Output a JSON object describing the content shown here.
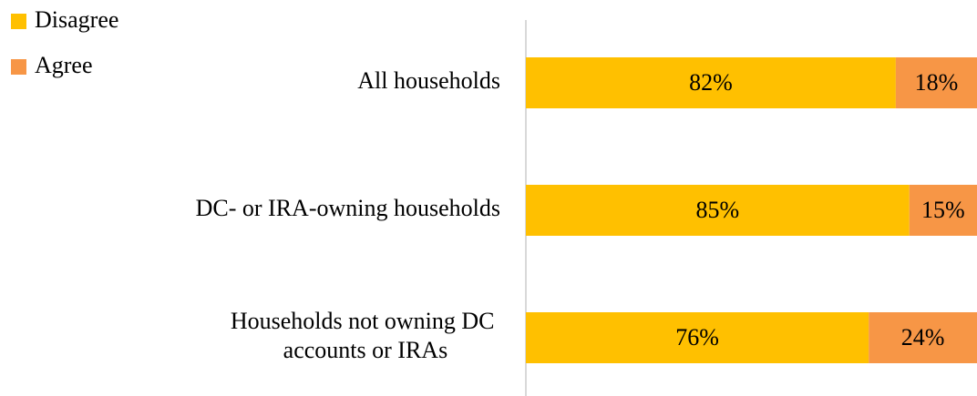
{
  "chart_data": {
    "type": "stacked_barh",
    "categories": [
      "All households",
      "DC- or IRA-owning households",
      "Households not owning DC accounts or IRAs"
    ],
    "series": [
      {
        "name": "Disagree",
        "color": "#FFC000",
        "values": [
          82,
          85,
          76
        ],
        "value_labels": [
          "82%",
          "85%",
          "76%"
        ]
      },
      {
        "name": "Agree",
        "color": "#F79646",
        "values": [
          18,
          15,
          24
        ],
        "value_labels": [
          "18%",
          "15%",
          "24%"
        ]
      }
    ],
    "xlim": [
      0,
      100
    ],
    "legend": "top-left"
  }
}
